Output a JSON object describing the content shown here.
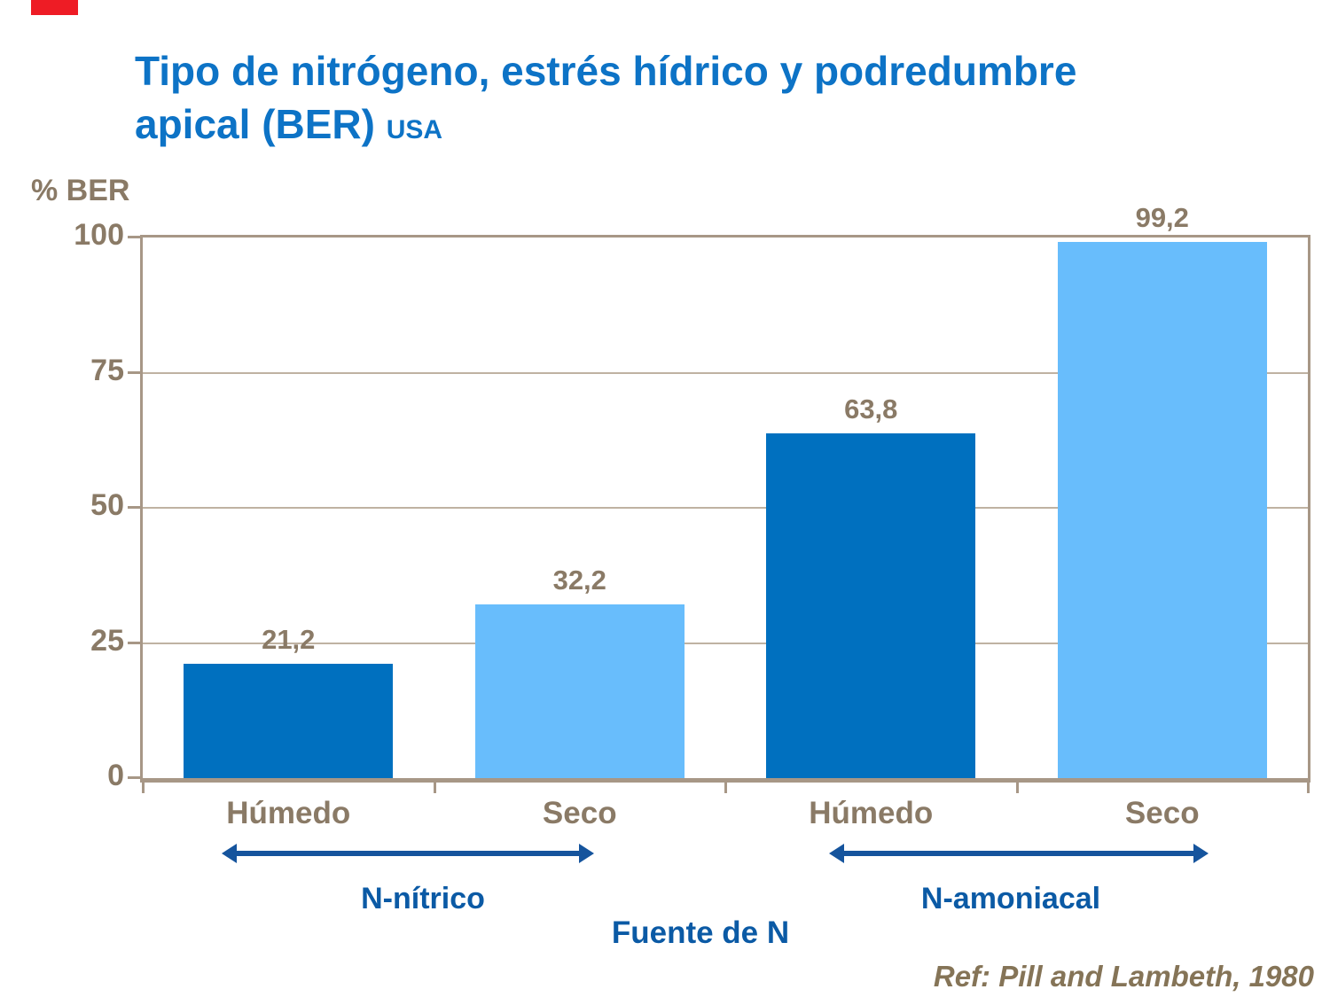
{
  "title": {
    "line1": "Tipo de nitrógeno, estrés hídrico y podredumbre",
    "line2": "apical (BER)",
    "region": "USA"
  },
  "chart_data": {
    "type": "bar",
    "ylabel": "% BER",
    "xlabel": "Fuente de N",
    "ylim": [
      0,
      100
    ],
    "yticks": [
      0,
      25,
      50,
      75,
      100
    ],
    "grid": true,
    "legend": "none",
    "decimal_separator": ",",
    "categories": [
      "Húmedo",
      "Seco",
      "Húmedo",
      "Seco"
    ],
    "values": [
      21.2,
      32.2,
      63.8,
      99.2
    ],
    "value_labels": [
      "21,2",
      "32,2",
      "63,8",
      "99,2"
    ],
    "bar_colors": [
      "#0070BF",
      "#68BDFC",
      "#0070BF",
      "#68BDFC"
    ],
    "group_labels": [
      "N-nítrico",
      "N-amoniacal"
    ]
  },
  "footer": {
    "reference": "Ref: Pill and Lambeth, 1980"
  },
  "theme": {
    "background": "#FFFFFF",
    "accent_title": "#0D73C6",
    "accent_label": "#0B5AA5",
    "arrow": "#15549D",
    "text_brown": "#8A7A66",
    "ref_brown": "#857457",
    "bar_dark": "#0070BF",
    "bar_light": "#68BDFC",
    "grid": "#BFB2A2",
    "frame": "#A79786",
    "marker_red": "#EE1C25"
  }
}
